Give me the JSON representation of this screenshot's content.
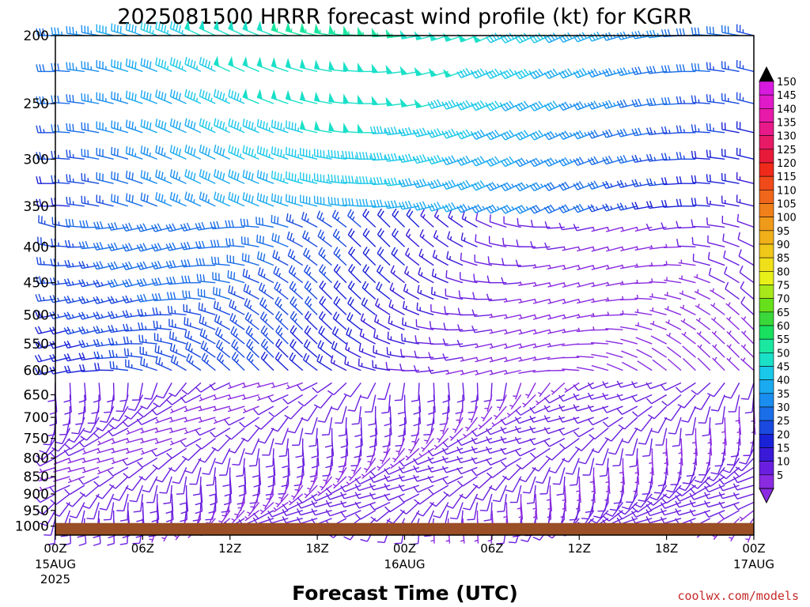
{
  "chart_data": {
    "type": "wind-barb-time-height",
    "title": "2025081500 HRRR forecast wind profile (kt) for KGRR",
    "xlabel": "Forecast Time (UTC)",
    "units": "kt",
    "y_axis": {
      "label": "",
      "ticks": [
        "200",
        "250",
        "300",
        "350",
        "400",
        "450",
        "500",
        "550",
        "600",
        "650",
        "700",
        "750",
        "800",
        "850",
        "900",
        "950",
        "1000"
      ],
      "ylim": [
        1030,
        200
      ],
      "scale": "log-pressure"
    },
    "x_axis": {
      "ticks": [
        {
          "label": "00Z",
          "sub": "15AUG",
          "sub2": "2025",
          "hour": 0
        },
        {
          "label": "06Z",
          "sub": "",
          "sub2": "",
          "hour": 6
        },
        {
          "label": "12Z",
          "sub": "",
          "sub2": "",
          "hour": 12
        },
        {
          "label": "18Z",
          "sub": "",
          "sub2": "",
          "hour": 18
        },
        {
          "label": "00Z",
          "sub": "16AUG",
          "sub2": "",
          "hour": 24
        },
        {
          "label": "06Z",
          "sub": "",
          "sub2": "",
          "hour": 30
        },
        {
          "label": "12Z",
          "sub": "",
          "sub2": "",
          "hour": 36
        },
        {
          "label": "18Z",
          "sub": "",
          "sub2": "",
          "hour": 42
        },
        {
          "label": "00Z",
          "sub": "17AUG",
          "sub2": "",
          "hour": 48
        }
      ],
      "xlim": [
        0,
        48
      ]
    },
    "surface_pressure_hpa": 985,
    "surface_color": "#9a4f26",
    "colorbar": {
      "levels": [
        "5",
        "10",
        "15",
        "20",
        "25",
        "30",
        "35",
        "40",
        "45",
        "50",
        "55",
        "60",
        "65",
        "70",
        "75",
        "80",
        "85",
        "90",
        "95",
        "100",
        "105",
        "110",
        "115",
        "120",
        "125",
        "130",
        "135",
        "140",
        "145",
        "150"
      ],
      "colors": [
        "#8a2be2",
        "#6a1fe0",
        "#3a1ad8",
        "#1a22d8",
        "#1a4ae0",
        "#1a6ee8",
        "#1a8ef0",
        "#1aaaf0",
        "#1ac8e8",
        "#1ae0c8",
        "#1ae8a0",
        "#1ae060",
        "#3ad83a",
        "#66e01a",
        "#a8e81a",
        "#e8f01a",
        "#f0e01a",
        "#f0c81a",
        "#f0b01a",
        "#f09a1a",
        "#f0801a",
        "#f0661a",
        "#f04a1a",
        "#f02a1a",
        "#e81a3a",
        "#e81a66",
        "#e81a8a",
        "#e81aaa",
        "#e01ac8",
        "#d81ae0"
      ]
    },
    "levels_hpa": [
      200,
      225,
      250,
      275,
      300,
      325,
      350,
      375,
      400,
      425,
      450,
      475,
      500,
      525,
      550,
      575,
      600,
      625,
      650,
      675,
      700,
      725,
      750,
      775,
      800,
      825,
      850,
      875,
      900,
      925,
      950,
      975,
      1000
    ],
    "times_hours_step": 1,
    "wind_model": {
      "note": "barbs sampled hourly from 0 to 48 h",
      "upper_jet": {
        "levels": [
          "200-350"
        ],
        "speed_kt": [
          20,
          55
        ],
        "direction_deg": 270
      },
      "mid_levels": {
        "levels": [
          "400-600"
        ],
        "speed_kt": [
          10,
          35
        ],
        "direction_deg": 280
      },
      "low_levels": {
        "levels": [
          "650-1000"
        ],
        "speed_kt": [
          5,
          20
        ],
        "direction_deg": 220
      }
    }
  },
  "credit": "coolwx.com/models"
}
